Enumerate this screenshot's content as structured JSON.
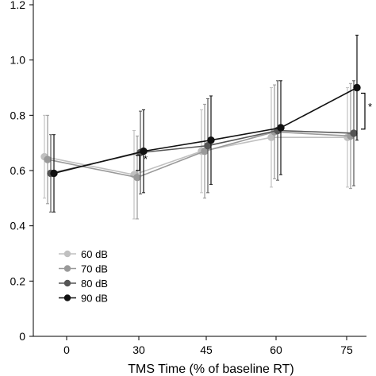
{
  "chart_data": {
    "type": "line",
    "xlabel": "TMS Time (% of baseline RT)",
    "ylabel": "",
    "x": [
      0,
      30,
      45,
      60,
      75
    ],
    "x_ticks": [
      "0",
      "30",
      "45",
      "60",
      "75"
    ],
    "y_ticks": [
      "0",
      "0.2",
      "0.4",
      "0.6",
      "0.8",
      "1.0",
      "1.2"
    ],
    "ylim": [
      0,
      1.2
    ],
    "grid": false,
    "legend_position": "bottom-left",
    "series": [
      {
        "name": "60 dB",
        "color": "#c0c0c0",
        "values": [
          0.65,
          0.585,
          0.67,
          0.72,
          0.72
        ],
        "err": [
          0.15,
          0.16,
          0.15,
          0.18,
          0.18
        ]
      },
      {
        "name": "70 dB",
        "color": "#999999",
        "values": [
          0.64,
          0.575,
          0.67,
          0.74,
          0.725
        ],
        "err": [
          0.16,
          0.15,
          0.17,
          0.17,
          0.19
        ]
      },
      {
        "name": "80 dB",
        "color": "#555555",
        "values": [
          0.59,
          0.665,
          0.69,
          0.745,
          0.735
        ],
        "err": [
          0.14,
          0.15,
          0.17,
          0.18,
          0.19
        ]
      },
      {
        "name": "90 dB",
        "color": "#111111",
        "values": [
          0.59,
          0.67,
          0.71,
          0.755,
          0.9
        ],
        "err": [
          0.14,
          0.15,
          0.16,
          0.17,
          0.19
        ]
      }
    ],
    "annotations": [
      "*",
      "*"
    ]
  }
}
